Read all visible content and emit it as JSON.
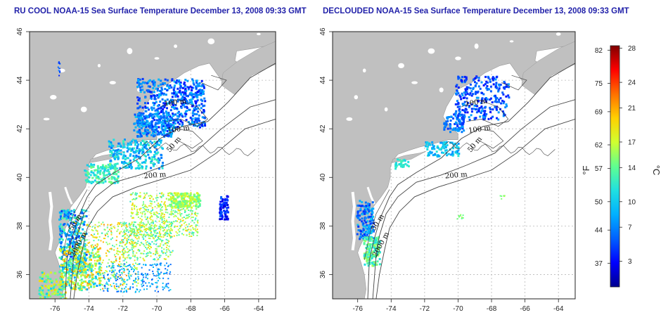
{
  "panels": [
    {
      "title": "RU COOL NOAA-15 Sea Surface Temperature December 13, 2008 09:33 GMT"
    },
    {
      "title": "DECLOUDED NOAA-15 Sea Surface Temperature December 13, 2008 09:33 GMT"
    }
  ],
  "map": {
    "lon_range": [
      -77.5,
      -63
    ],
    "lat_range": [
      35,
      46
    ],
    "lon_ticks": [
      -76,
      -74,
      -72,
      -70,
      -68,
      -66,
      -64
    ],
    "lat_ticks": [
      36,
      38,
      40,
      42,
      44,
      46
    ],
    "contour_labels": [
      "100 m",
      "100 m",
      "50 m",
      "200 m",
      "50 m",
      "2000 m"
    ],
    "colors": {
      "land": "#c0c0c0",
      "ocean": "#ffffff",
      "grid": "#b8b8b8",
      "contour": "#444444"
    }
  },
  "colorbar": {
    "fahrenheit_unit": "°F",
    "celsius_unit": "°C",
    "fahrenheit_ticks": [
      82,
      75,
      69,
      62,
      57,
      50,
      44,
      37
    ],
    "celsius_ticks": [
      28,
      24,
      21,
      17,
      14,
      10,
      7,
      3
    ],
    "range_c": [
      0,
      28.3
    ],
    "colors": [
      "#00008f",
      "#0000ff",
      "#0060ff",
      "#00b0ff",
      "#20e0e0",
      "#60ff90",
      "#d0ff30",
      "#ffd000",
      "#ff7000",
      "#ff0000",
      "#800000"
    ]
  }
}
